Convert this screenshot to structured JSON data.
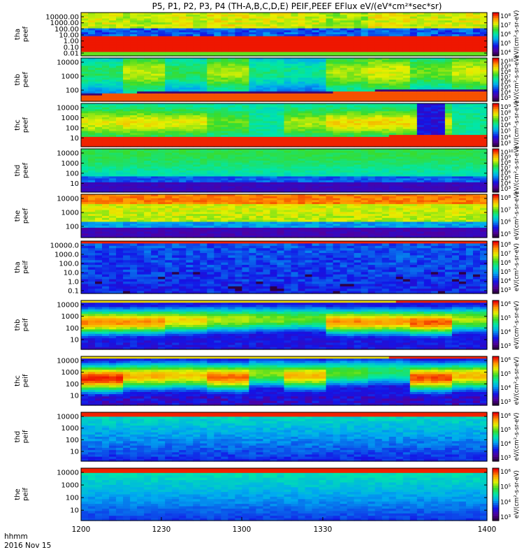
{
  "title": "P5, P1, P2, P3, P4 (TH-A,B,C,D,E) PEIF,PEEF EFlux eV/(eV*cm²*sec*sr)",
  "chart_data": {
    "type": "heatmap",
    "colormap": "rainbow (purple-blue-cyan-green-yellow-red)",
    "x_axis": {
      "ticks": [
        "1200",
        "1230",
        "1300",
        "1330",
        "1400"
      ],
      "corner_label_1": "hhmm",
      "corner_label_2": "2016 Nov 15",
      "range": [
        "12:00",
        "14:00"
      ]
    },
    "panels": [
      {
        "id": "tha_peef",
        "label": [
          "tha",
          "peef"
        ],
        "scale": "log",
        "y_ticks": [
          "10000.00",
          "1000.00",
          "100.00",
          "10.00",
          "1.00",
          "0.10",
          "0.01"
        ],
        "cb_ticks": [
          "10⁸",
          "10⁷",
          "10⁶",
          "10⁵",
          "10⁴"
        ],
        "cb_unit": "eV/(cm²-s-sr-eV)",
        "description": "green-yellow top band, red low-energy band"
      },
      {
        "id": "thb_peef",
        "label": [
          "thb",
          "peef"
        ],
        "scale": "log",
        "y_ticks": [
          "10000",
          "1000",
          "100"
        ],
        "cb_ticks": [
          "10¹⁰",
          "10⁹",
          "10⁸",
          "10⁷",
          "10⁶",
          "10⁵",
          "10⁴",
          "10³"
        ],
        "cb_unit": "eV/(cm²-s-sr-eV)"
      },
      {
        "id": "thc_peef",
        "label": [
          "thc",
          "peef"
        ],
        "scale": "log",
        "y_ticks": [
          "10000",
          "1000",
          "100",
          "10"
        ],
        "cb_ticks": [
          "10⁹",
          "10⁸",
          "10⁷",
          "10⁶",
          "10⁵",
          "10⁴",
          "10³"
        ],
        "cb_unit": "eV/(cm²-s-sr-eV)"
      },
      {
        "id": "thd_peef",
        "label": [
          "thd",
          "peef"
        ],
        "scale": "log",
        "y_ticks": [
          "10000",
          "1000",
          "100",
          "10"
        ],
        "cb_ticks": [
          "10¹⁰",
          "10⁹",
          "10⁸",
          "10⁷",
          "10⁶",
          "10⁵",
          "10⁴",
          "10³"
        ],
        "cb_unit": "eV/(cm²-s-sr-eV)"
      },
      {
        "id": "the_peef",
        "label": [
          "the",
          "peef"
        ],
        "scale": "log",
        "y_ticks": [
          "10000",
          "1000",
          "100"
        ],
        "cb_ticks": [
          "10⁸",
          "10⁷",
          "10⁶",
          "10⁵"
        ],
        "cb_unit": "eV/(cm²-s-sr-eV)"
      },
      {
        "id": "tha_peif",
        "label": [
          "tha",
          "peif"
        ],
        "scale": "log",
        "y_ticks": [
          "10000.0",
          "1000.0",
          "100.0",
          "10.0",
          "1.0",
          "0.1"
        ],
        "cb_ticks": [
          "10⁸",
          "10⁷",
          "10⁶",
          "10⁵",
          "10⁴",
          "10³"
        ],
        "cb_unit": "eV/(cm²-s-sr-eV)"
      },
      {
        "id": "thb_peif",
        "label": [
          "thb",
          "peif"
        ],
        "scale": "log",
        "y_ticks": [
          "10000",
          "1000",
          "100",
          "10"
        ],
        "cb_ticks": [
          "10⁶",
          "10⁵",
          "10⁴",
          "10³"
        ],
        "cb_unit": "eV/(cm²-s-sr-eV)"
      },
      {
        "id": "thc_peif",
        "label": [
          "thc",
          "peif"
        ],
        "scale": "log",
        "y_ticks": [
          "10000",
          "1000",
          "100",
          "10"
        ],
        "cb_ticks": [
          "10⁶",
          "10⁵",
          "10⁴",
          "10³"
        ],
        "cb_unit": "eV/(cm²-s-sr-eV)"
      },
      {
        "id": "thd_peif",
        "label": [
          "thd",
          "peif"
        ],
        "scale": "log",
        "y_ticks": [
          "10000",
          "1000",
          "100",
          "10"
        ],
        "cb_ticks": [
          "10⁶",
          "10⁵",
          "10⁴",
          "10³"
        ],
        "cb_unit": "eV/(cm²-s-sr-eV)"
      },
      {
        "id": "the_peif",
        "label": [
          "the",
          "peif"
        ],
        "scale": "log",
        "y_ticks": [
          "10000",
          "1000",
          "100",
          "10"
        ],
        "cb_ticks": [
          "10⁶",
          "10⁵",
          "10⁴",
          "10³"
        ],
        "cb_unit": "eV/(cm²-s-sr-eV)"
      }
    ]
  }
}
